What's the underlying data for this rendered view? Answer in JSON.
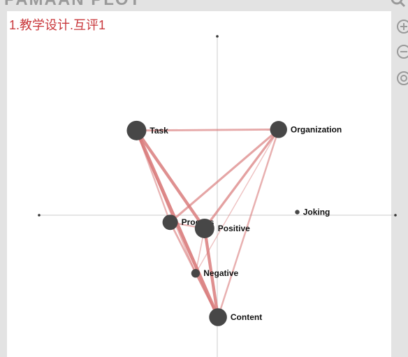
{
  "header": {
    "title": "PAMAAN PLOT"
  },
  "plot": {
    "title": "1.教学设计.互评1",
    "colors": {
      "edge": "#d97b7b",
      "node": "#474747",
      "title": "#c9383c",
      "axis": "#cccccc"
    }
  },
  "toolbar": {
    "icons": [
      "search-icon",
      "zoom-in-icon",
      "zoom-out-icon",
      "reset-view-icon"
    ]
  },
  "chart_data": {
    "type": "network",
    "nodes": [
      {
        "id": "task",
        "label": "Task",
        "x": -1.08,
        "y": 0.83,
        "weight": 1.0
      },
      {
        "id": "organization",
        "label": "Organization",
        "x": 0.82,
        "y": 0.84,
        "weight": 0.85
      },
      {
        "id": "process",
        "label": "Process",
        "x": -0.63,
        "y": -0.07,
        "weight": 0.75
      },
      {
        "id": "positive",
        "label": "Positive",
        "x": -0.17,
        "y": -0.13,
        "weight": 1.0
      },
      {
        "id": "negative",
        "label": "Negative",
        "x": -0.29,
        "y": -0.57,
        "weight": 0.35
      },
      {
        "id": "content",
        "label": "Content",
        "x": 0.01,
        "y": -1.0,
        "weight": 0.9
      },
      {
        "id": "joking",
        "label": "Joking",
        "x": 1.07,
        "y": 0.03,
        "weight": 0.1
      }
    ],
    "edges": [
      {
        "source": "task",
        "target": "organization",
        "weight": 0.55
      },
      {
        "source": "task",
        "target": "positive",
        "weight": 0.9
      },
      {
        "source": "task",
        "target": "content",
        "weight": 1.0
      },
      {
        "source": "task",
        "target": "process",
        "weight": 0.4
      },
      {
        "source": "task",
        "target": "negative",
        "weight": 0.3
      },
      {
        "source": "organization",
        "target": "positive",
        "weight": 0.65
      },
      {
        "source": "organization",
        "target": "process",
        "weight": 0.6
      },
      {
        "source": "organization",
        "target": "content",
        "weight": 0.45
      },
      {
        "source": "organization",
        "target": "negative",
        "weight": 0.2
      },
      {
        "source": "process",
        "target": "content",
        "weight": 0.5
      },
      {
        "source": "process",
        "target": "positive",
        "weight": 0.4
      },
      {
        "source": "positive",
        "target": "content",
        "weight": 0.9
      },
      {
        "source": "positive",
        "target": "negative",
        "weight": 0.25
      },
      {
        "source": "negative",
        "target": "content",
        "weight": 0.35
      }
    ]
  }
}
